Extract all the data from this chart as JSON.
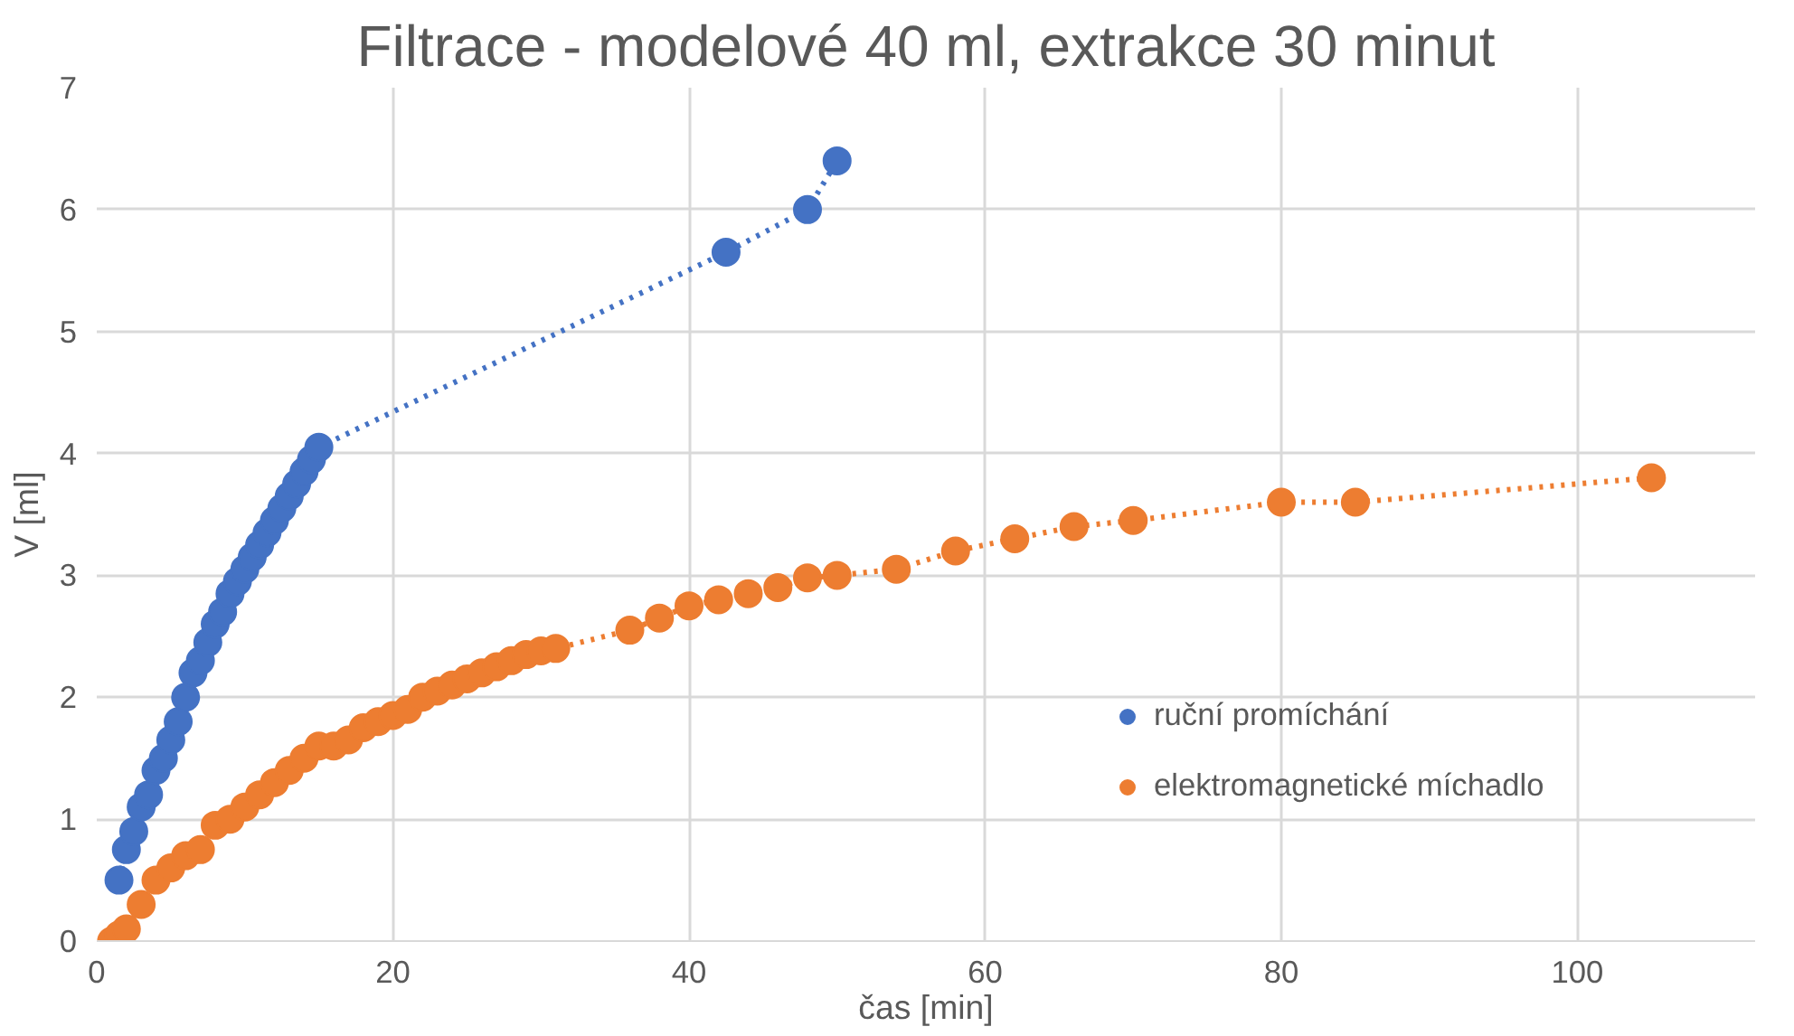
{
  "chart_data": {
    "type": "line",
    "title": "Filtrace - modelové 40 ml, extrakce 30 minut",
    "xlabel": "čas [min]",
    "ylabel": "V [ml]",
    "xlim": [
      0,
      112
    ],
    "xticks": [
      0,
      20,
      40,
      60,
      80,
      100
    ],
    "ylim": [
      0,
      7
    ],
    "yticks": [
      0,
      1,
      2,
      3,
      4,
      5,
      6,
      7
    ],
    "grid": true,
    "legend": "right",
    "marker": "circle",
    "line_style": "dotted",
    "series": [
      {
        "name": "ruční promíchání",
        "color": "#4472c4",
        "x": [
          1.5,
          2,
          2.5,
          3,
          3.5,
          4,
          4.5,
          5,
          5.5,
          6,
          6.5,
          7,
          7.5,
          8,
          8.5,
          9,
          9.5,
          10,
          10.5,
          11,
          11.5,
          12,
          12.5,
          13,
          13.5,
          14,
          14.5,
          15,
          42.5,
          48,
          50
        ],
        "values": [
          0.5,
          0.75,
          0.9,
          1.1,
          1.2,
          1.4,
          1.5,
          1.65,
          1.8,
          2.0,
          2.2,
          2.3,
          2.45,
          2.6,
          2.7,
          2.85,
          2.95,
          3.05,
          3.15,
          3.25,
          3.35,
          3.45,
          3.55,
          3.65,
          3.75,
          3.85,
          3.95,
          4.05,
          5.65,
          6.0,
          6.4
        ]
      },
      {
        "name": "elektromagnetické míchadlo",
        "color": "#ed7d31",
        "x": [
          1,
          1.5,
          2,
          3,
          4,
          5,
          6,
          7,
          8,
          9,
          10,
          11,
          12,
          13,
          14,
          15,
          16,
          17,
          18,
          19,
          20,
          21,
          22,
          23,
          24,
          25,
          26,
          27,
          28,
          29,
          30,
          31,
          36,
          38,
          40,
          42,
          44,
          46,
          48,
          50,
          54,
          58,
          62,
          66,
          70,
          80,
          85,
          105
        ],
        "values": [
          0,
          0.05,
          0.1,
          0.3,
          0.5,
          0.6,
          0.7,
          0.75,
          0.95,
          1.0,
          1.1,
          1.2,
          1.3,
          1.4,
          1.5,
          1.6,
          1.6,
          1.65,
          1.75,
          1.8,
          1.85,
          1.9,
          2.0,
          2.05,
          2.1,
          2.15,
          2.2,
          2.25,
          2.3,
          2.35,
          2.38,
          2.4,
          2.55,
          2.65,
          2.75,
          2.8,
          2.85,
          2.9,
          2.98,
          3.0,
          3.05,
          3.2,
          3.3,
          3.4,
          3.45,
          3.6,
          3.6,
          3.8
        ]
      }
    ]
  }
}
